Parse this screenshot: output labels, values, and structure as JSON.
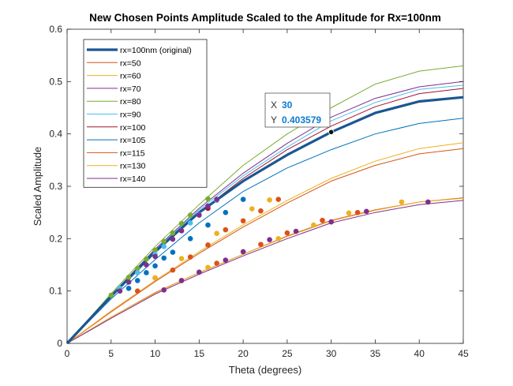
{
  "chart_data": {
    "type": "line",
    "title": "New Chosen Points Amplitude Scaled to the Amplitude for Rx=100nm",
    "xlabel": "Theta (degrees)",
    "ylabel": "Scaled Amplitude",
    "xlim": [
      0,
      45
    ],
    "ylim": [
      0,
      0.6
    ],
    "xticks": [
      0,
      5,
      10,
      15,
      20,
      25,
      30,
      35,
      40,
      45
    ],
    "yticks": [
      0,
      0.1,
      0.2,
      0.3,
      0.4,
      0.5,
      0.6
    ],
    "grid": false,
    "legend_position": "top-left",
    "series": [
      {
        "name": "rx=100nm (original)",
        "color": "#1b5692",
        "emphasis": true,
        "x": [
          0,
          5,
          10,
          15,
          20,
          25,
          30,
          35,
          40,
          45
        ],
        "y": [
          0,
          0.09,
          0.175,
          0.25,
          0.31,
          0.36,
          0.4036,
          0.44,
          0.462,
          0.47
        ],
        "markers": null
      },
      {
        "name": "rx=50",
        "color": "#d95319",
        "x": [
          0,
          5,
          10,
          15,
          20,
          25,
          30,
          35,
          40,
          45
        ],
        "y": [
          0,
          0.05,
          0.097,
          0.135,
          0.17,
          0.205,
          0.235,
          0.255,
          0.27,
          0.278
        ],
        "markers": {
          "x": [
            11,
            13,
            15,
            17,
            20,
            22,
            25,
            29,
            33
          ],
          "y": [
            0.102,
            0.12,
            0.136,
            0.153,
            0.175,
            0.189,
            0.211,
            0.235,
            0.25
          ]
        }
      },
      {
        "name": "rx=60",
        "color": "#edb120",
        "x": [
          0,
          5,
          10,
          15,
          20,
          25,
          30,
          35,
          40,
          45
        ],
        "y": [
          0,
          0.05,
          0.096,
          0.135,
          0.17,
          0.204,
          0.234,
          0.254,
          0.27,
          0.277
        ],
        "markers": {
          "x": [
            13,
            16,
            20,
            24,
            28,
            32,
            38
          ],
          "y": [
            0.12,
            0.145,
            0.175,
            0.2,
            0.226,
            0.249,
            0.27
          ]
        }
      },
      {
        "name": "rx=70",
        "color": "#7e2f8e",
        "x": [
          0,
          5,
          10,
          15,
          20,
          25,
          30,
          35,
          40,
          45
        ],
        "y": [
          0,
          0.048,
          0.094,
          0.132,
          0.167,
          0.2,
          0.23,
          0.25,
          0.265,
          0.273
        ],
        "markers": {
          "x": [
            11,
            13,
            15,
            18,
            20,
            23,
            26,
            30,
            34,
            41
          ],
          "y": [
            0.102,
            0.12,
            0.136,
            0.159,
            0.175,
            0.198,
            0.214,
            0.232,
            0.252,
            0.27
          ]
        }
      },
      {
        "name": "rx=80",
        "color": "#77ac30",
        "x": [
          0,
          5,
          10,
          15,
          20,
          25,
          30,
          35,
          40,
          45
        ],
        "y": [
          0,
          0.095,
          0.185,
          0.265,
          0.34,
          0.4,
          0.45,
          0.495,
          0.52,
          0.53
        ],
        "markers": {
          "x": [
            5,
            7,
            8,
            9,
            10,
            11,
            12,
            13,
            14,
            16
          ],
          "y": [
            0.092,
            0.126,
            0.143,
            0.161,
            0.178,
            0.195,
            0.211,
            0.229,
            0.245,
            0.276
          ]
        }
      },
      {
        "name": "rx=90",
        "color": "#4dbeee",
        "x": [
          0,
          5,
          10,
          15,
          20,
          25,
          30,
          35,
          40,
          45
        ],
        "y": [
          0,
          0.09,
          0.178,
          0.255,
          0.32,
          0.375,
          0.425,
          0.46,
          0.485,
          0.493
        ],
        "markers": {
          "x": [
            6,
            8,
            10,
            11,
            13,
            14,
            15,
            17
          ],
          "y": [
            0.105,
            0.135,
            0.17,
            0.185,
            0.215,
            0.23,
            0.246,
            0.273
          ]
        }
      },
      {
        "name": "rx=100",
        "color": "#a2142f",
        "x": [
          0,
          5,
          10,
          15,
          20,
          25,
          30,
          35,
          40,
          45
        ],
        "y": [
          0,
          0.09,
          0.176,
          0.25,
          0.315,
          0.37,
          0.415,
          0.452,
          0.477,
          0.487
        ],
        "markers": {
          "x": [
            16
          ],
          "y": [
            0.258
          ]
        }
      },
      {
        "name": "rx=105",
        "color": "#0072bd",
        "x": [
          0,
          5,
          10,
          15,
          20,
          25,
          30,
          35,
          40,
          45
        ],
        "y": [
          0,
          0.085,
          0.16,
          0.23,
          0.29,
          0.335,
          0.37,
          0.4,
          0.42,
          0.43
        ],
        "markers": {
          "x": [
            7,
            8,
            9,
            10,
            11,
            12,
            14,
            16,
            18,
            20
          ],
          "y": [
            0.105,
            0.12,
            0.135,
            0.148,
            0.163,
            0.174,
            0.2,
            0.226,
            0.25,
            0.275
          ]
        }
      },
      {
        "name": "rx=115",
        "color": "#d95319",
        "x": [
          0,
          5,
          10,
          15,
          20,
          25,
          30,
          35,
          40,
          45
        ],
        "y": [
          0,
          0.06,
          0.118,
          0.172,
          0.222,
          0.268,
          0.31,
          0.34,
          0.362,
          0.372
        ],
        "markers": {
          "x": [
            8,
            10,
            12,
            14,
            16,
            18,
            20,
            22,
            24
          ],
          "y": [
            0.1,
            0.125,
            0.14,
            0.165,
            0.188,
            0.217,
            0.234,
            0.253,
            0.275
          ]
        }
      },
      {
        "name": "rx=130",
        "color": "#edb120",
        "x": [
          0,
          5,
          10,
          15,
          20,
          25,
          30,
          35,
          40,
          45
        ],
        "y": [
          0,
          0.062,
          0.12,
          0.175,
          0.226,
          0.273,
          0.315,
          0.348,
          0.372,
          0.383
        ],
        "markers": {
          "x": [
            10,
            13,
            17,
            21,
            23
          ],
          "y": [
            0.125,
            0.162,
            0.21,
            0.257,
            0.274
          ]
        }
      },
      {
        "name": "rx=140",
        "color": "#7e2f8e",
        "x": [
          0,
          5,
          10,
          15,
          20,
          25,
          30,
          35,
          40,
          45
        ],
        "y": [
          0,
          0.092,
          0.18,
          0.258,
          0.325,
          0.382,
          0.432,
          0.468,
          0.49,
          0.5
        ],
        "markers": {
          "x": [
            6,
            7,
            9,
            10,
            12,
            13,
            15,
            16,
            17
          ],
          "y": [
            0.1,
            0.117,
            0.15,
            0.166,
            0.199,
            0.215,
            0.245,
            0.262,
            0.275
          ]
        }
      }
    ],
    "datatip": {
      "x_key": "X",
      "x_value": "30",
      "y_key": "Y",
      "y_value": "0.403579",
      "x": 30,
      "y": 0.403579
    }
  }
}
